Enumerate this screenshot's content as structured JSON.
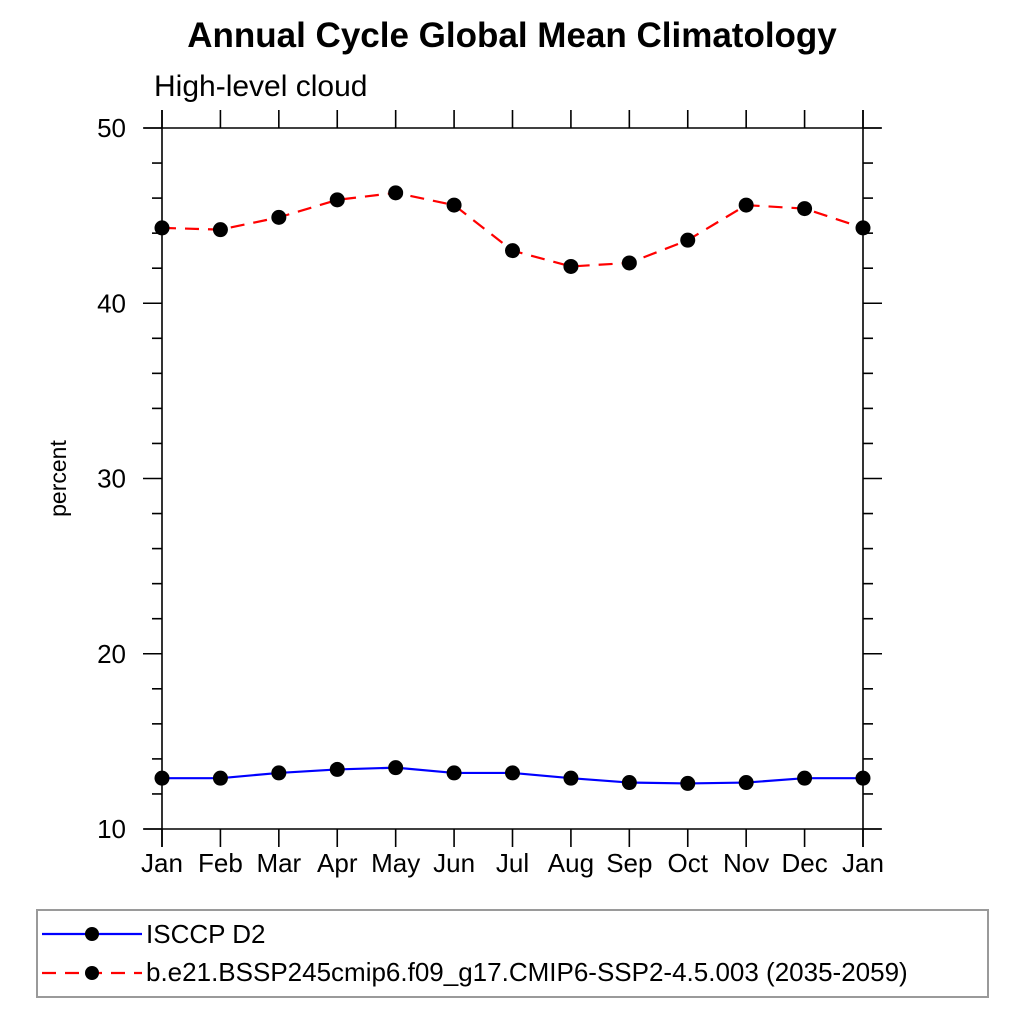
{
  "header": {
    "title": "Annual Cycle Global Mean Climatology",
    "subtitle": "High-level cloud"
  },
  "legend": {
    "items": [
      {
        "label": "ISCCP D2",
        "color": "#0000ff",
        "line_style": "solid",
        "marker": "circle",
        "marker_color": "#000000"
      },
      {
        "label": "b.e21.BSSP245cmip6.f09_g17.CMIP6-SSP2-4.5.003 (2035-2059)",
        "color": "#ff0000",
        "line_style": "dashed",
        "marker": "circle",
        "marker_color": "#000000"
      }
    ]
  },
  "chart_data": {
    "type": "line",
    "title": "Annual Cycle Global Mean Climatology",
    "subtitle": "High-level cloud",
    "xlabel": "",
    "ylabel": "percent",
    "categories": [
      "Jan",
      "Feb",
      "Mar",
      "Apr",
      "May",
      "Jun",
      "Jul",
      "Aug",
      "Sep",
      "Oct",
      "Nov",
      "Dec",
      "Jan"
    ],
    "series": [
      {
        "name": "ISCCP D2",
        "color": "#0000ff",
        "line_style": "solid",
        "marker": "circle",
        "marker_color": "#000000",
        "values": [
          12.9,
          12.9,
          13.2,
          13.4,
          13.5,
          13.2,
          13.2,
          12.9,
          12.65,
          12.6,
          12.65,
          12.9,
          12.9
        ]
      },
      {
        "name": "b.e21.BSSP245cmip6.f09_g17.CMIP6-SSP2-4.5.003 (2035-2059)",
        "color": "#ff0000",
        "line_style": "dashed",
        "marker": "circle",
        "marker_color": "#000000",
        "values": [
          44.3,
          44.2,
          44.9,
          45.9,
          46.3,
          45.6,
          43.0,
          42.1,
          42.3,
          43.6,
          45.6,
          45.4,
          44.3
        ]
      }
    ],
    "ylim": [
      10,
      50
    ],
    "yticks_major": [
      10,
      20,
      30,
      40,
      50
    ],
    "ytick_minor_step": 2,
    "grid": false,
    "legend_position": "bottom-left-box",
    "axis_color": "#000000"
  }
}
